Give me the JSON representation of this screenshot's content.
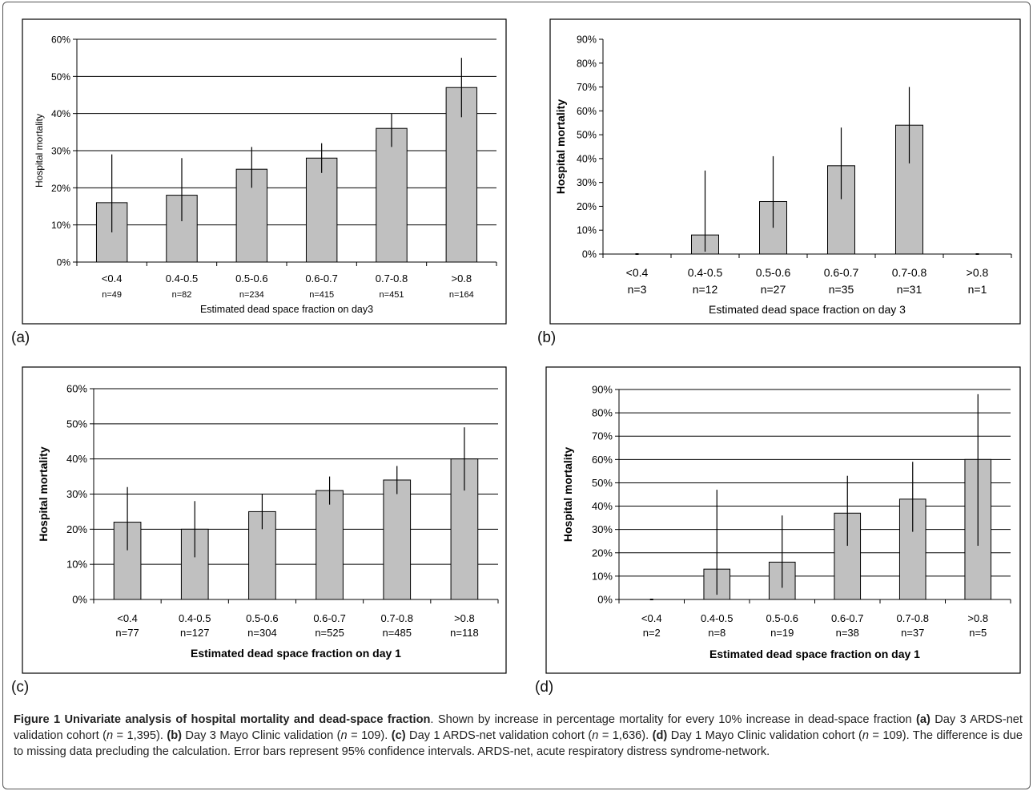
{
  "chart_data": [
    {
      "panel": "(a)",
      "type": "bar",
      "categories": [
        "<0.4",
        "0.4-0.5",
        "0.5-0.6",
        "0.6-0.7",
        "0.7-0.8",
        ">0.8"
      ],
      "n_labels": [
        "n=49",
        "n=82",
        "n=234",
        "n=415",
        "n=451",
        "n=164"
      ],
      "values": [
        16,
        18,
        25,
        28,
        36,
        47
      ],
      "error_low": [
        8,
        11,
        20,
        24,
        31,
        39
      ],
      "error_high": [
        29,
        28,
        31,
        32,
        40,
        55
      ],
      "yticks": [
        "0%",
        "10%",
        "20%",
        "30%",
        "40%",
        "50%",
        "60%"
      ],
      "ylim": [
        0,
        60
      ],
      "ylabel": "Hospital mortality",
      "xlabel": "Estimated dead space fraction on day3",
      "grid": true
    },
    {
      "panel": "(b)",
      "type": "bar",
      "categories": [
        "<0.4",
        "0.4-0.5",
        "0.5-0.6",
        "0.6-0.7",
        "0.7-0.8",
        ">0.8"
      ],
      "n_labels": [
        "n=3",
        "n=12",
        "n=27",
        "n=35",
        "n=31",
        "n=1"
      ],
      "values": [
        0,
        8,
        22,
        37,
        54,
        0
      ],
      "error_low": [
        0,
        1,
        11,
        23,
        38,
        0
      ],
      "error_high": [
        0,
        35,
        41,
        53,
        70,
        0
      ],
      "yticks": [
        "0%",
        "10%",
        "20%",
        "30%",
        "40%",
        "50%",
        "60%",
        "70%",
        "80%",
        "90%"
      ],
      "ylim": [
        0,
        90
      ],
      "ylabel": "Hospital mortality",
      "xlabel": "Estimated dead space fraction on day 3",
      "grid": false
    },
    {
      "panel": "(c)",
      "type": "bar",
      "categories": [
        "<0.4",
        "0.4-0.5",
        "0.5-0.6",
        "0.6-0.7",
        "0.7-0.8",
        ">0.8"
      ],
      "n_labels": [
        "n=77",
        "n=127",
        "n=304",
        "n=525",
        "n=485",
        "n=118"
      ],
      "values": [
        22,
        20,
        25,
        31,
        34,
        40
      ],
      "error_low": [
        14,
        12,
        20,
        27,
        30,
        31
      ],
      "error_high": [
        32,
        28,
        30,
        35,
        38,
        49
      ],
      "yticks": [
        "0%",
        "10%",
        "20%",
        "30%",
        "40%",
        "50%",
        "60%"
      ],
      "ylim": [
        0,
        60
      ],
      "ylabel": "Hospital mortality",
      "xlabel": "Estimated dead space fraction on day 1",
      "grid": true
    },
    {
      "panel": "(d)",
      "type": "bar",
      "categories": [
        "<0.4",
        "0.4-0.5",
        "0.5-0.6",
        "0.6-0.7",
        "0.7-0.8",
        ">0.8"
      ],
      "n_labels": [
        "n=2",
        "n=8",
        "n=19",
        "n=38",
        "n=37",
        "n=5"
      ],
      "values": [
        0,
        13,
        16,
        37,
        43,
        60
      ],
      "error_low": [
        0,
        2,
        5,
        23,
        29,
        23
      ],
      "error_high": [
        0,
        47,
        36,
        53,
        59,
        88
      ],
      "yticks": [
        "0%",
        "10%",
        "20%",
        "30%",
        "40%",
        "50%",
        "60%",
        "70%",
        "80%",
        "90%"
      ],
      "ylim": [
        0,
        90
      ],
      "ylabel": "Hospital mortality",
      "xlabel": "Estimated dead space fraction on day 1",
      "grid": true
    }
  ],
  "panel_labels": [
    "(a)",
    "(b)",
    "(c)",
    "(d)"
  ],
  "caption": {
    "title": "Figure 1 Univariate analysis of hospital mortality and dead-space fraction",
    "t1": ". Shown by increase in percentage mortality for every 10% increase in dead-space fraction ",
    "a": "(a)",
    "t2": " Day 3 ARDS-net validation cohort (",
    "n": "n",
    "t3": " = 1,395). ",
    "b": "(b)",
    "t4": " Day 3 Mayo Clinic validation (",
    "t5": " = 109). ",
    "c": "(c)",
    "t6": " Day 1 ARDS-net validation cohort (",
    "t7": " = 1,636). ",
    "d": "(d)",
    "t8": " Day 1 Mayo Clinic validation cohort (",
    "t9": " = 109). The difference is due to missing data precluding the calculation. Error bars represent 95% confidence intervals. ARDS-net, acute respiratory distress syndrome-network."
  },
  "colors": {
    "bar_fill": "#c0c0c0",
    "bar_stroke": "#000000",
    "frame": "#000000"
  }
}
